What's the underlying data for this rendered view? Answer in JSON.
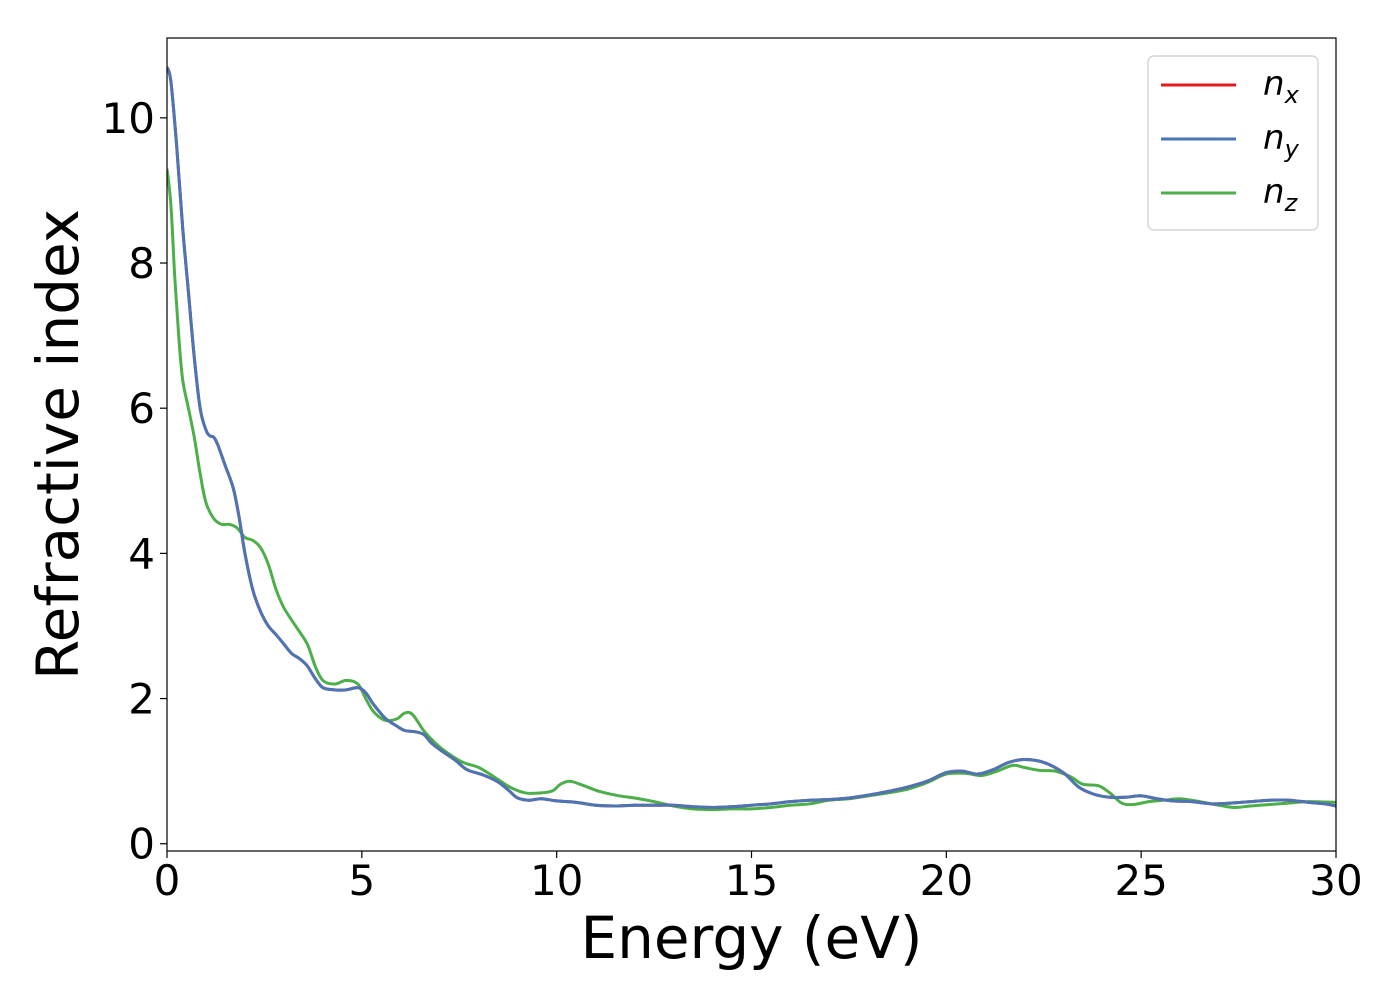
{
  "chart_data": {
    "type": "line",
    "title": "",
    "xlabel": "Energy (eV)",
    "ylabel": "Refractive index",
    "xlim": [
      0,
      30
    ],
    "ylim": [
      -0.1,
      11.1
    ],
    "xticks": [
      0,
      5,
      10,
      15,
      20,
      25,
      30
    ],
    "yticks": [
      0,
      2,
      4,
      6,
      8,
      10
    ],
    "grid": false,
    "legend_position": "top-right",
    "series": [
      {
        "name": "n_x",
        "label_base": "n",
        "label_sub": "x",
        "color": "#e41a1c",
        "points": [
          [
            0,
            10.7
          ],
          [
            0.1,
            10.5
          ],
          [
            0.25,
            9.6
          ],
          [
            0.4,
            8.5
          ],
          [
            0.55,
            7.6
          ],
          [
            0.7,
            6.7
          ],
          [
            0.85,
            6.0
          ],
          [
            1.0,
            5.7
          ],
          [
            1.1,
            5.62
          ],
          [
            1.2,
            5.6
          ],
          [
            1.3,
            5.5
          ],
          [
            1.5,
            5.2
          ],
          [
            1.7,
            4.9
          ],
          [
            1.85,
            4.5
          ],
          [
            2.0,
            4.0
          ],
          [
            2.2,
            3.5
          ],
          [
            2.4,
            3.2
          ],
          [
            2.6,
            3.0
          ],
          [
            2.8,
            2.88
          ],
          [
            3.0,
            2.75
          ],
          [
            3.2,
            2.62
          ],
          [
            3.4,
            2.55
          ],
          [
            3.6,
            2.45
          ],
          [
            3.8,
            2.28
          ],
          [
            4.0,
            2.15
          ],
          [
            4.3,
            2.12
          ],
          [
            4.6,
            2.12
          ],
          [
            4.9,
            2.15
          ],
          [
            5.1,
            2.08
          ],
          [
            5.3,
            1.92
          ],
          [
            5.6,
            1.73
          ],
          [
            5.9,
            1.62
          ],
          [
            6.1,
            1.56
          ],
          [
            6.4,
            1.54
          ],
          [
            6.6,
            1.5
          ],
          [
            6.8,
            1.38
          ],
          [
            7.1,
            1.26
          ],
          [
            7.4,
            1.15
          ],
          [
            7.7,
            1.02
          ],
          [
            8.1,
            0.95
          ],
          [
            8.5,
            0.85
          ],
          [
            8.8,
            0.72
          ],
          [
            9.0,
            0.63
          ],
          [
            9.3,
            0.6
          ],
          [
            9.6,
            0.62
          ],
          [
            10.0,
            0.59
          ],
          [
            10.5,
            0.57
          ],
          [
            11.0,
            0.53
          ],
          [
            11.5,
            0.52
          ],
          [
            12.0,
            0.53
          ],
          [
            12.5,
            0.53
          ],
          [
            13.0,
            0.53
          ],
          [
            13.5,
            0.51
          ],
          [
            14.0,
            0.5
          ],
          [
            14.5,
            0.51
          ],
          [
            15.0,
            0.53
          ],
          [
            15.5,
            0.55
          ],
          [
            16.0,
            0.58
          ],
          [
            16.5,
            0.6
          ],
          [
            17.0,
            0.61
          ],
          [
            17.5,
            0.63
          ],
          [
            18.0,
            0.67
          ],
          [
            18.5,
            0.72
          ],
          [
            19.0,
            0.78
          ],
          [
            19.5,
            0.86
          ],
          [
            20.0,
            0.98
          ],
          [
            20.4,
            1.0
          ],
          [
            20.8,
            0.96
          ],
          [
            21.2,
            1.02
          ],
          [
            21.6,
            1.12
          ],
          [
            22.0,
            1.16
          ],
          [
            22.5,
            1.12
          ],
          [
            23.0,
            0.98
          ],
          [
            23.4,
            0.78
          ],
          [
            23.8,
            0.68
          ],
          [
            24.2,
            0.64
          ],
          [
            24.6,
            0.64
          ],
          [
            25.0,
            0.66
          ],
          [
            25.4,
            0.62
          ],
          [
            25.8,
            0.59
          ],
          [
            26.3,
            0.58
          ],
          [
            26.8,
            0.55
          ],
          [
            27.3,
            0.56
          ],
          [
            27.8,
            0.58
          ],
          [
            28.3,
            0.6
          ],
          [
            28.8,
            0.6
          ],
          [
            29.3,
            0.57
          ],
          [
            29.7,
            0.55
          ],
          [
            30,
            0.52
          ]
        ]
      },
      {
        "name": "n_y",
        "label_base": "n",
        "label_sub": "y",
        "color": "#4a76b5",
        "points": [
          [
            0,
            10.7
          ],
          [
            0.1,
            10.5
          ],
          [
            0.25,
            9.6
          ],
          [
            0.4,
            8.5
          ],
          [
            0.55,
            7.6
          ],
          [
            0.7,
            6.7
          ],
          [
            0.85,
            6.0
          ],
          [
            1.0,
            5.7
          ],
          [
            1.1,
            5.62
          ],
          [
            1.2,
            5.6
          ],
          [
            1.3,
            5.5
          ],
          [
            1.5,
            5.2
          ],
          [
            1.7,
            4.9
          ],
          [
            1.85,
            4.5
          ],
          [
            2.0,
            4.0
          ],
          [
            2.2,
            3.5
          ],
          [
            2.4,
            3.2
          ],
          [
            2.6,
            3.0
          ],
          [
            2.8,
            2.88
          ],
          [
            3.0,
            2.75
          ],
          [
            3.2,
            2.62
          ],
          [
            3.4,
            2.55
          ],
          [
            3.6,
            2.45
          ],
          [
            3.8,
            2.28
          ],
          [
            4.0,
            2.15
          ],
          [
            4.3,
            2.12
          ],
          [
            4.6,
            2.12
          ],
          [
            4.9,
            2.15
          ],
          [
            5.1,
            2.08
          ],
          [
            5.3,
            1.92
          ],
          [
            5.6,
            1.73
          ],
          [
            5.9,
            1.62
          ],
          [
            6.1,
            1.56
          ],
          [
            6.4,
            1.54
          ],
          [
            6.6,
            1.5
          ],
          [
            6.8,
            1.38
          ],
          [
            7.1,
            1.26
          ],
          [
            7.4,
            1.15
          ],
          [
            7.7,
            1.02
          ],
          [
            8.1,
            0.95
          ],
          [
            8.5,
            0.85
          ],
          [
            8.8,
            0.72
          ],
          [
            9.0,
            0.63
          ],
          [
            9.3,
            0.6
          ],
          [
            9.6,
            0.62
          ],
          [
            10.0,
            0.59
          ],
          [
            10.5,
            0.57
          ],
          [
            11.0,
            0.53
          ],
          [
            11.5,
            0.52
          ],
          [
            12.0,
            0.53
          ],
          [
            12.5,
            0.53
          ],
          [
            13.0,
            0.53
          ],
          [
            13.5,
            0.51
          ],
          [
            14.0,
            0.5
          ],
          [
            14.5,
            0.51
          ],
          [
            15.0,
            0.53
          ],
          [
            15.5,
            0.55
          ],
          [
            16.0,
            0.58
          ],
          [
            16.5,
            0.6
          ],
          [
            17.0,
            0.61
          ],
          [
            17.5,
            0.63
          ],
          [
            18.0,
            0.67
          ],
          [
            18.5,
            0.72
          ],
          [
            19.0,
            0.78
          ],
          [
            19.5,
            0.86
          ],
          [
            20.0,
            0.98
          ],
          [
            20.4,
            1.0
          ],
          [
            20.8,
            0.96
          ],
          [
            21.2,
            1.02
          ],
          [
            21.6,
            1.12
          ],
          [
            22.0,
            1.16
          ],
          [
            22.5,
            1.12
          ],
          [
            23.0,
            0.98
          ],
          [
            23.4,
            0.78
          ],
          [
            23.8,
            0.68
          ],
          [
            24.2,
            0.64
          ],
          [
            24.6,
            0.64
          ],
          [
            25.0,
            0.66
          ],
          [
            25.4,
            0.62
          ],
          [
            25.8,
            0.59
          ],
          [
            26.3,
            0.58
          ],
          [
            26.8,
            0.55
          ],
          [
            27.3,
            0.56
          ],
          [
            27.8,
            0.58
          ],
          [
            28.3,
            0.6
          ],
          [
            28.8,
            0.6
          ],
          [
            29.3,
            0.57
          ],
          [
            29.7,
            0.55
          ],
          [
            30,
            0.52
          ]
        ]
      },
      {
        "name": "n_z",
        "label_base": "n",
        "label_sub": "z",
        "color": "#4daf4a",
        "points": [
          [
            0,
            9.3
          ],
          [
            0.1,
            8.8
          ],
          [
            0.2,
            7.8
          ],
          [
            0.3,
            7.0
          ],
          [
            0.4,
            6.4
          ],
          [
            0.55,
            6.0
          ],
          [
            0.7,
            5.6
          ],
          [
            0.85,
            5.1
          ],
          [
            1.0,
            4.7
          ],
          [
            1.2,
            4.48
          ],
          [
            1.4,
            4.4
          ],
          [
            1.6,
            4.4
          ],
          [
            1.8,
            4.35
          ],
          [
            2.0,
            4.22
          ],
          [
            2.2,
            4.18
          ],
          [
            2.4,
            4.08
          ],
          [
            2.6,
            3.85
          ],
          [
            2.8,
            3.5
          ],
          [
            3.0,
            3.25
          ],
          [
            3.3,
            3.0
          ],
          [
            3.6,
            2.75
          ],
          [
            3.8,
            2.45
          ],
          [
            4.0,
            2.25
          ],
          [
            4.3,
            2.2
          ],
          [
            4.6,
            2.25
          ],
          [
            4.9,
            2.2
          ],
          [
            5.1,
            2.0
          ],
          [
            5.3,
            1.82
          ],
          [
            5.6,
            1.7
          ],
          [
            5.9,
            1.72
          ],
          [
            6.1,
            1.8
          ],
          [
            6.3,
            1.78
          ],
          [
            6.6,
            1.55
          ],
          [
            6.9,
            1.38
          ],
          [
            7.2,
            1.25
          ],
          [
            7.6,
            1.12
          ],
          [
            8.0,
            1.05
          ],
          [
            8.4,
            0.92
          ],
          [
            8.8,
            0.78
          ],
          [
            9.2,
            0.7
          ],
          [
            9.6,
            0.7
          ],
          [
            9.9,
            0.73
          ],
          [
            10.1,
            0.82
          ],
          [
            10.35,
            0.86
          ],
          [
            10.7,
            0.8
          ],
          [
            11.1,
            0.72
          ],
          [
            11.6,
            0.66
          ],
          [
            12.0,
            0.63
          ],
          [
            12.5,
            0.58
          ],
          [
            13.0,
            0.52
          ],
          [
            13.5,
            0.48
          ],
          [
            14.0,
            0.47
          ],
          [
            14.5,
            0.48
          ],
          [
            15.0,
            0.48
          ],
          [
            15.5,
            0.5
          ],
          [
            16.0,
            0.53
          ],
          [
            16.5,
            0.55
          ],
          [
            17.0,
            0.6
          ],
          [
            17.5,
            0.62
          ],
          [
            18.0,
            0.66
          ],
          [
            18.5,
            0.7
          ],
          [
            19.0,
            0.75
          ],
          [
            19.5,
            0.84
          ],
          [
            20.0,
            0.96
          ],
          [
            20.5,
            0.97
          ],
          [
            20.9,
            0.94
          ],
          [
            21.3,
            1.0
          ],
          [
            21.7,
            1.08
          ],
          [
            22.0,
            1.05
          ],
          [
            22.4,
            1.01
          ],
          [
            22.8,
            1.0
          ],
          [
            23.2,
            0.92
          ],
          [
            23.5,
            0.82
          ],
          [
            23.9,
            0.8
          ],
          [
            24.2,
            0.7
          ],
          [
            24.5,
            0.56
          ],
          [
            24.8,
            0.54
          ],
          [
            25.2,
            0.58
          ],
          [
            25.6,
            0.6
          ],
          [
            26.0,
            0.62
          ],
          [
            26.5,
            0.58
          ],
          [
            27.0,
            0.53
          ],
          [
            27.4,
            0.5
          ],
          [
            27.8,
            0.52
          ],
          [
            28.3,
            0.54
          ],
          [
            28.8,
            0.56
          ],
          [
            29.3,
            0.58
          ],
          [
            30,
            0.57
          ]
        ]
      }
    ]
  }
}
